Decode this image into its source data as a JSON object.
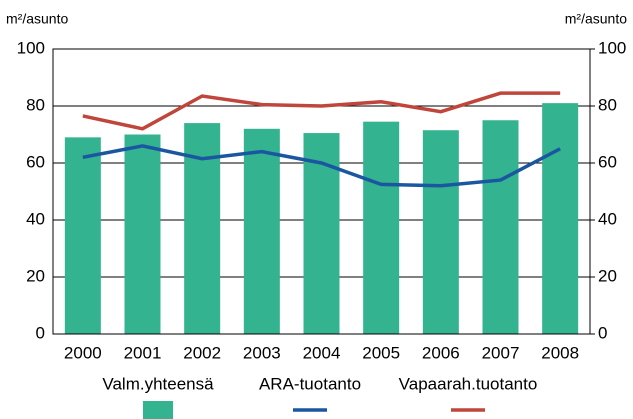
{
  "chart_data": {
    "type": "bar",
    "y_label": "m²/asunto",
    "y2_label": "m²/asunto",
    "categories": [
      "2000",
      "2001",
      "2002",
      "2003",
      "2004",
      "2005",
      "2006",
      "2007",
      "2008"
    ],
    "series": [
      {
        "name": "Valm.yhteensä",
        "type": "bar",
        "color": "#33b38f",
        "values": [
          69,
          70,
          74,
          72,
          70.5,
          74.5,
          71.5,
          75,
          81
        ]
      },
      {
        "name": "ARA-tuotanto",
        "type": "line",
        "color": "#1b57a0",
        "values": [
          62,
          66,
          61.5,
          64,
          60,
          52.5,
          52,
          54,
          65
        ]
      },
      {
        "name": "Vapaarah.tuotanto",
        "type": "line",
        "color": "#c0453a",
        "values": [
          76.5,
          72,
          83.5,
          80.5,
          80,
          81.5,
          78,
          84.5,
          84.5
        ]
      }
    ],
    "ylim": [
      0,
      100
    ],
    "yticks": [
      0,
      20,
      40,
      60,
      80,
      100
    ],
    "y2lim": [
      0,
      100
    ],
    "y2ticks": [
      0,
      20,
      40,
      60,
      80,
      100
    ],
    "grid": true
  }
}
